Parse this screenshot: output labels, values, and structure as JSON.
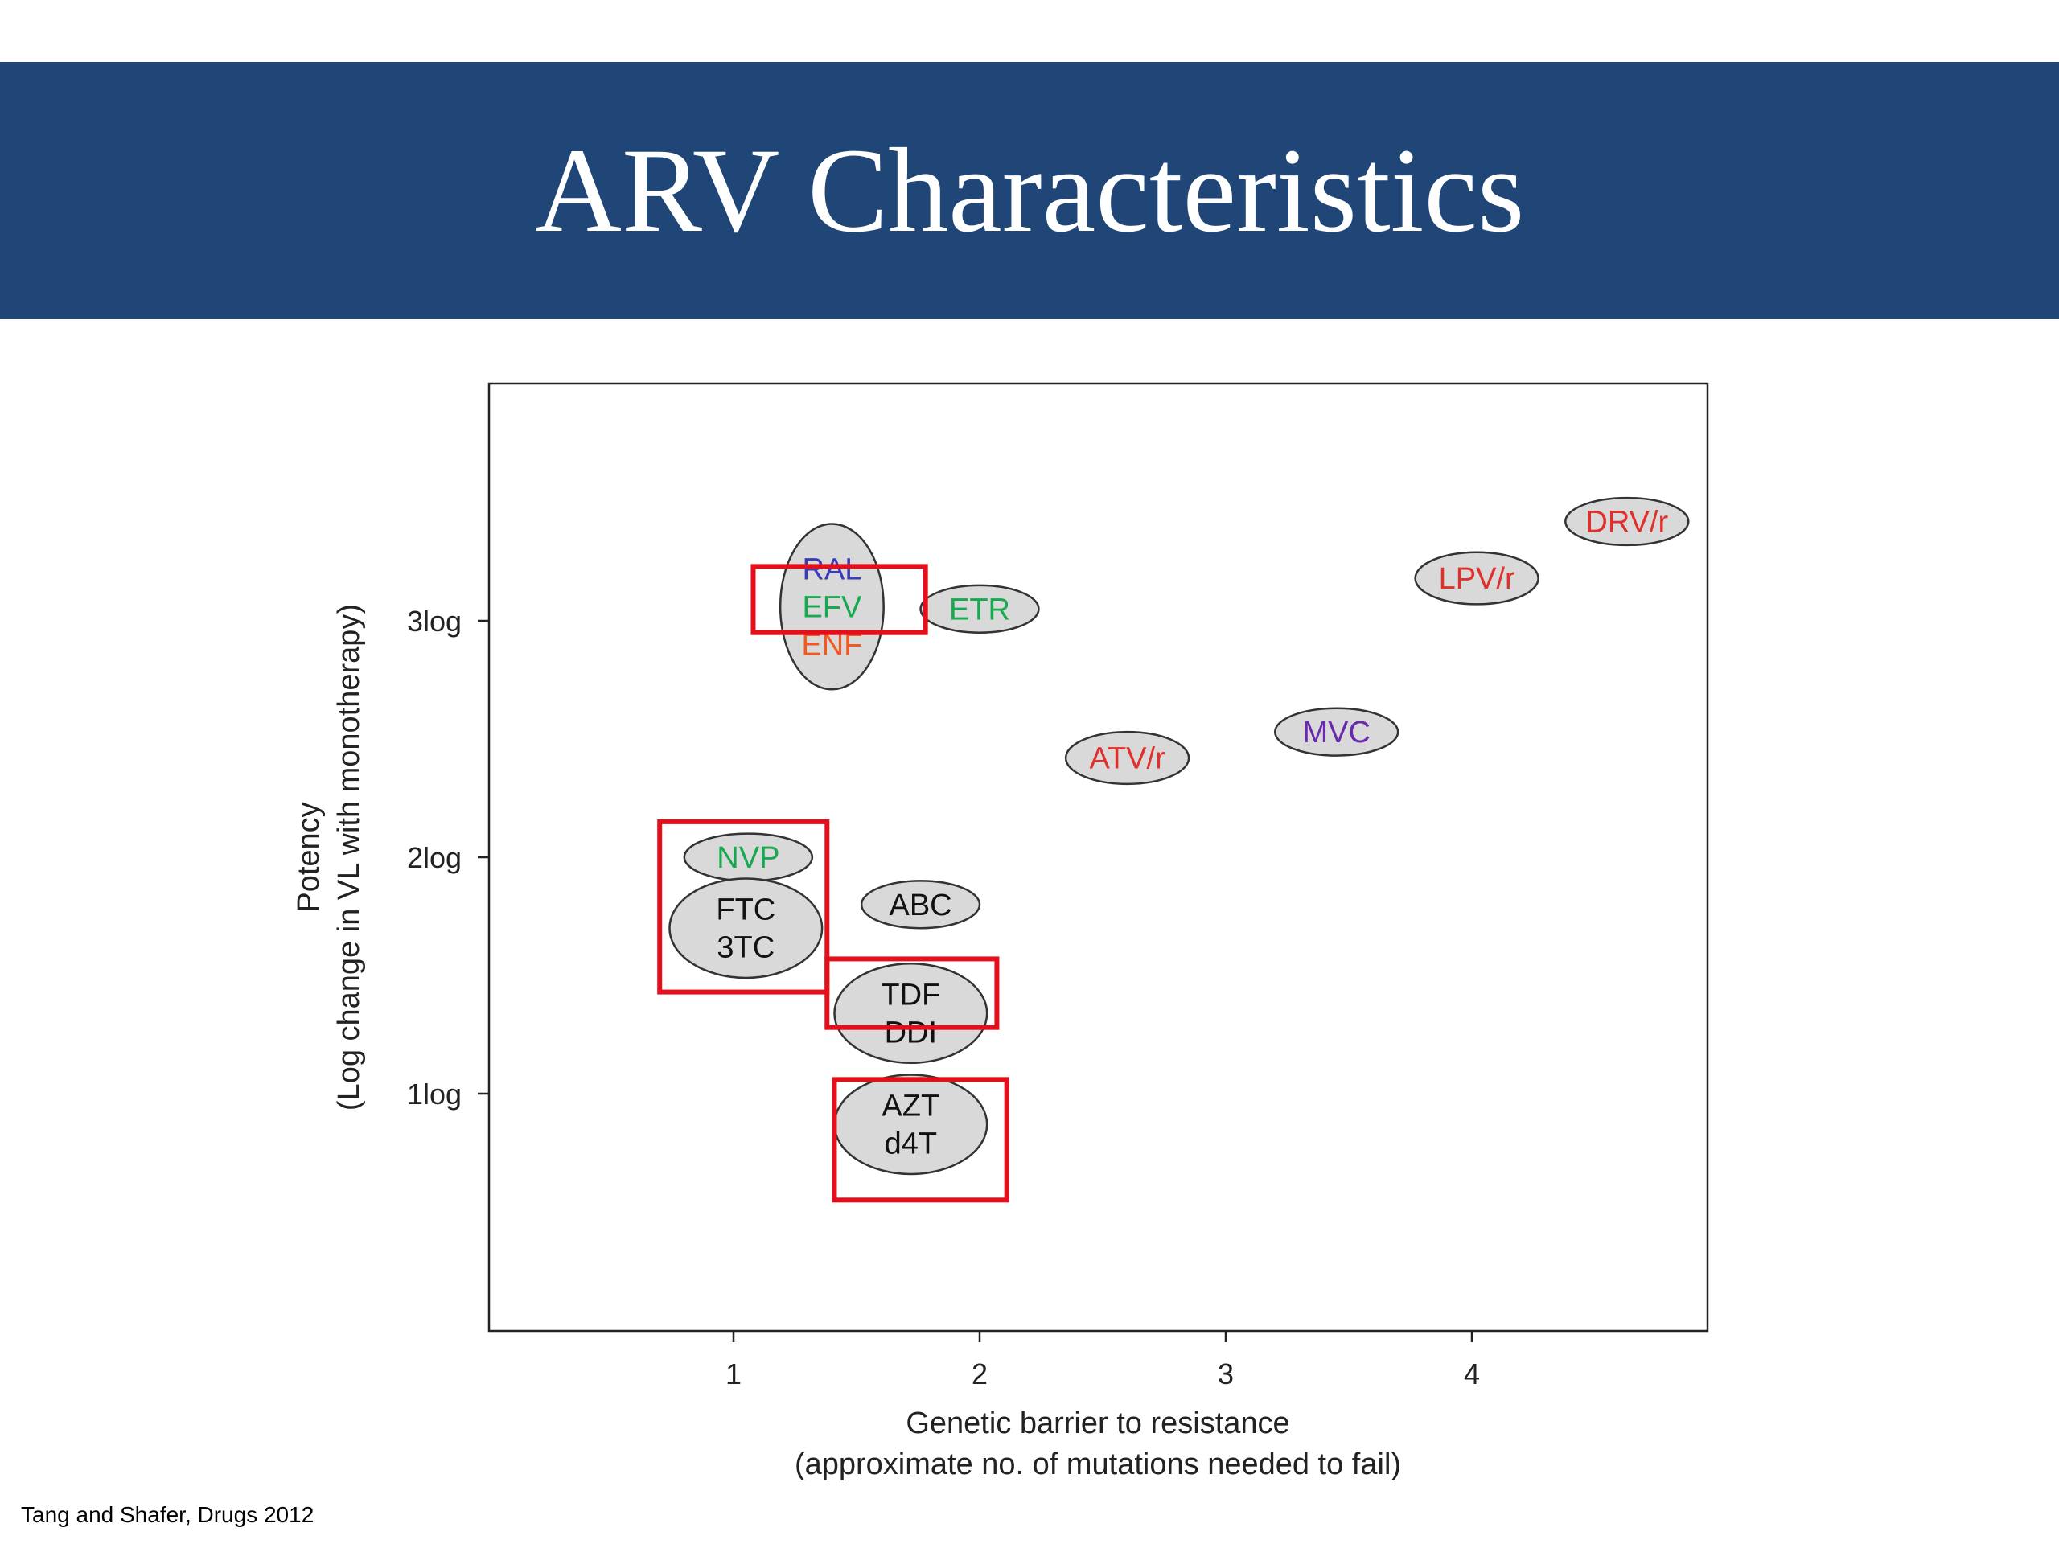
{
  "title": "ARV Characteristics",
  "citation": "Tang and Shafer, Drugs 2012",
  "colors": {
    "banner": "#1f4677",
    "bubble_fill": "#d9d9d9",
    "highlight_box": "#e3101c"
  },
  "chart_data": {
    "type": "scatter",
    "xlabel": [
      "Genetic barrier to resistance",
      "(approximate no. of mutations needed to fail)"
    ],
    "ylabel": [
      "Potency",
      "(Log change in VL with monotherapy)"
    ],
    "xlim": [
      0,
      5
    ],
    "ylim": [
      0,
      4
    ],
    "grid": false,
    "x_ticks": [
      {
        "value": 1,
        "label": "1"
      },
      {
        "value": 2,
        "label": "2"
      },
      {
        "value": 3,
        "label": "3"
      },
      {
        "value": 4,
        "label": "4"
      }
    ],
    "y_ticks": [
      {
        "value": 1,
        "label": "1log"
      },
      {
        "value": 2,
        "label": "2log"
      },
      {
        "value": 3,
        "label": "3log"
      }
    ],
    "groups": [
      {
        "id": "ral-efv-enf",
        "x": 1.4,
        "y": 3.06,
        "rx": 0.21,
        "ry": 0.35,
        "labels": [
          {
            "text": "RAL",
            "color": "#3b3ab8"
          },
          {
            "text": "EFV",
            "color": "#18a84f"
          },
          {
            "text": "ENF",
            "color": "#f05a22"
          }
        ]
      },
      {
        "id": "etr",
        "x": 2.0,
        "y": 3.05,
        "rx": 0.24,
        "ry": 0.1,
        "labels": [
          {
            "text": "ETR",
            "color": "#18a84f"
          }
        ]
      },
      {
        "id": "drv-r",
        "x": 4.63,
        "y": 3.42,
        "rx": 0.25,
        "ry": 0.1,
        "labels": [
          {
            "text": "DRV/r",
            "color": "#e0302b"
          }
        ]
      },
      {
        "id": "lpv-r",
        "x": 4.02,
        "y": 3.18,
        "rx": 0.25,
        "ry": 0.11,
        "labels": [
          {
            "text": "LPV/r",
            "color": "#e0302b"
          }
        ]
      },
      {
        "id": "mvc",
        "x": 3.45,
        "y": 2.53,
        "rx": 0.25,
        "ry": 0.1,
        "labels": [
          {
            "text": "MVC",
            "color": "#6a2ab0"
          }
        ]
      },
      {
        "id": "atv-r",
        "x": 2.6,
        "y": 2.42,
        "rx": 0.25,
        "ry": 0.11,
        "labels": [
          {
            "text": "ATV/r",
            "color": "#e0302b"
          }
        ]
      },
      {
        "id": "nvp",
        "x": 1.06,
        "y": 2.0,
        "rx": 0.26,
        "ry": 0.1,
        "labels": [
          {
            "text": "NVP",
            "color": "#18a84f"
          }
        ]
      },
      {
        "id": "abc",
        "x": 1.76,
        "y": 1.8,
        "rx": 0.24,
        "ry": 0.1,
        "labels": [
          {
            "text": "ABC",
            "color": "#111111"
          }
        ]
      },
      {
        "id": "ftc-3tc",
        "x": 1.05,
        "y": 1.7,
        "rx": 0.31,
        "ry": 0.21,
        "labels": [
          {
            "text": "FTC",
            "color": "#111111"
          },
          {
            "text": "3TC",
            "color": "#111111"
          }
        ]
      },
      {
        "id": "tdf-ddi",
        "x": 1.72,
        "y": 1.34,
        "rx": 0.31,
        "ry": 0.21,
        "labels": [
          {
            "text": "TDF",
            "color": "#111111"
          },
          {
            "text": "DDI",
            "color": "#111111"
          }
        ]
      },
      {
        "id": "azt-d4t",
        "x": 1.72,
        "y": 0.87,
        "rx": 0.31,
        "ry": 0.21,
        "labels": [
          {
            "text": "AZT",
            "color": "#111111"
          },
          {
            "text": "d4T",
            "color": "#111111"
          }
        ]
      }
    ],
    "highlights": [
      {
        "x0": 1.08,
        "x1": 1.78,
        "y0": 2.95,
        "y1": 3.23
      },
      {
        "x0": 0.7,
        "x1": 1.38,
        "y0": 1.43,
        "y1": 2.15
      },
      {
        "x0": 1.38,
        "x1": 2.07,
        "y0": 1.28,
        "y1": 1.57
      },
      {
        "x0": 1.41,
        "x1": 2.11,
        "y0": 0.55,
        "y1": 1.06
      }
    ]
  }
}
